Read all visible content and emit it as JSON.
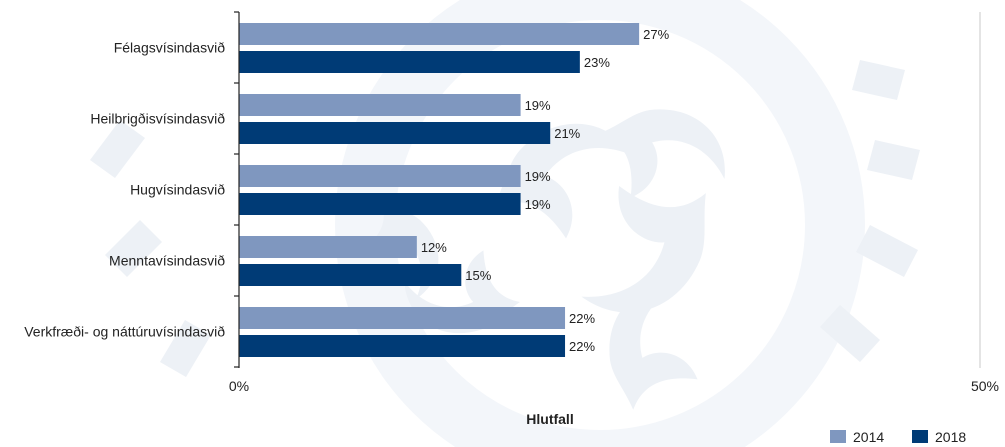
{
  "chart_data": {
    "type": "bar",
    "orientation": "horizontal",
    "categories": [
      "Félagsvísindasvið",
      "Heilbrigðisvísindasvið",
      "Hugvísindasvið",
      "Menntavísindasvið",
      "Verkfræði- og náttúruvísindasvið"
    ],
    "series": [
      {
        "name": "2014",
        "values": [
          27,
          19,
          19,
          12,
          22
        ],
        "labels": [
          "27%",
          "19%",
          "19%",
          "12%",
          "22%"
        ],
        "color": "#7f97bf"
      },
      {
        "name": "2018",
        "values": [
          23,
          21,
          19,
          15,
          22
        ],
        "labels": [
          "23%",
          "21%",
          "19%",
          "15%",
          "22%"
        ],
        "color": "#003b76"
      }
    ],
    "xlim": [
      0,
      50
    ],
    "xticks": [
      "0%",
      "50%"
    ],
    "xlabel": "Hlutfall",
    "ylabel": "",
    "title": "",
    "legend_position": "bottom-right",
    "grid": false
  }
}
